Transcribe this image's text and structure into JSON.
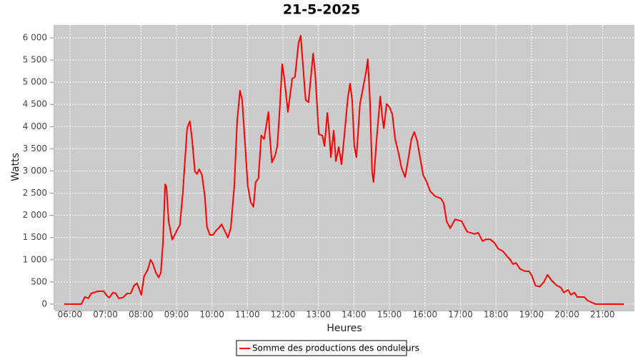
{
  "chart_data": {
    "type": "line",
    "title": "21-5-2025",
    "xlabel": "Heures",
    "ylabel": "Watts",
    "x": [
      5.84,
      6.32,
      6.42,
      6.52,
      6.6,
      6.72,
      6.79,
      6.95,
      7.05,
      7.11,
      7.21,
      7.29,
      7.37,
      7.49,
      7.61,
      7.71,
      7.81,
      7.89,
      7.95,
      8.01,
      8.09,
      8.19,
      8.27,
      8.33,
      8.42,
      8.5,
      8.56,
      8.62,
      8.68,
      8.72,
      8.78,
      8.88,
      8.94,
      9.02,
      9.1,
      9.18,
      9.3,
      9.38,
      9.44,
      9.52,
      9.58,
      9.64,
      9.72,
      9.8,
      9.86,
      9.94,
      10.03,
      10.13,
      10.19,
      10.27,
      10.35,
      10.45,
      10.53,
      10.63,
      10.71,
      10.79,
      10.85,
      10.93,
      11.01,
      11.09,
      11.17,
      11.23,
      11.31,
      11.39,
      11.47,
      11.59,
      11.63,
      11.69,
      11.78,
      11.84,
      11.9,
      11.98,
      12.04,
      12.14,
      12.26,
      12.34,
      12.44,
      12.5,
      12.56,
      12.64,
      12.72,
      12.85,
      12.91,
      13.01,
      13.11,
      13.17,
      13.25,
      13.31,
      13.35,
      13.43,
      13.49,
      13.57,
      13.65,
      13.73,
      13.83,
      13.89,
      13.95,
      14.01,
      14.07,
      14.17,
      14.25,
      14.35,
      14.39,
      14.45,
      14.51,
      14.55,
      14.64,
      14.74,
      14.8,
      14.84,
      14.92,
      15.0,
      15.08,
      15.16,
      15.26,
      15.34,
      15.44,
      15.54,
      15.62,
      15.7,
      15.78,
      15.86,
      15.95,
      16.05,
      16.15,
      16.29,
      16.45,
      16.53,
      16.61,
      16.71,
      16.85,
      17.03,
      17.19,
      17.4,
      17.5,
      17.62,
      17.72,
      17.84,
      17.96,
      18.06,
      18.2,
      18.3,
      18.4,
      18.48,
      18.56,
      18.68,
      18.82,
      18.93,
      19.01,
      19.11,
      19.23,
      19.35,
      19.45,
      19.57,
      19.71,
      19.83,
      19.91,
      20.03,
      20.11,
      20.21,
      20.29,
      20.49,
      20.58,
      20.72,
      20.81,
      21.6
    ],
    "series": [
      {
        "name": "Somme des productions des onduleurs",
        "color": "#ff0000",
        "values": [
          0,
          0,
          160,
          130,
          240,
          270,
          290,
          290,
          180,
          145,
          260,
          240,
          130,
          145,
          240,
          240,
          420,
          470,
          340,
          210,
          630,
          770,
          1000,
          920,
          710,
          600,
          710,
          1380,
          2700,
          2640,
          1870,
          1450,
          1540,
          1670,
          1790,
          2510,
          3960,
          4120,
          3720,
          2990,
          2930,
          3040,
          2910,
          2430,
          1740,
          1560,
          1560,
          1670,
          1710,
          1800,
          1670,
          1500,
          1710,
          2670,
          4120,
          4810,
          4600,
          3640,
          2670,
          2300,
          2190,
          2750,
          2830,
          3800,
          3720,
          4330,
          3800,
          3190,
          3350,
          3560,
          4280,
          5410,
          5080,
          4330,
          5080,
          5120,
          5890,
          6050,
          5410,
          4600,
          4550,
          5650,
          5170,
          3830,
          3800,
          3560,
          4310,
          3800,
          3310,
          3910,
          3220,
          3540,
          3150,
          3800,
          4670,
          4970,
          4600,
          3560,
          3310,
          4520,
          4840,
          5280,
          5520,
          4600,
          2990,
          2750,
          3720,
          4680,
          4200,
          3960,
          4510,
          4440,
          4280,
          3720,
          3390,
          3070,
          2860,
          3310,
          3720,
          3880,
          3680,
          3310,
          2910,
          2750,
          2540,
          2430,
          2380,
          2270,
          1870,
          1710,
          1910,
          1870,
          1630,
          1580,
          1610,
          1420,
          1460,
          1460,
          1380,
          1250,
          1190,
          1090,
          1000,
          900,
          930,
          790,
          740,
          740,
          640,
          420,
          390,
          500,
          660,
          530,
          420,
          370,
          260,
          320,
          210,
          260,
          160,
          160,
          80,
          30,
          0,
          0
        ]
      }
    ],
    "xlim": [
      5.58,
      21.9
    ],
    "xticks": [
      {
        "value": 6,
        "label": "06:00"
      },
      {
        "value": 7,
        "label": "07:00"
      },
      {
        "value": 8,
        "label": "08:00"
      },
      {
        "value": 9,
        "label": "09:00"
      },
      {
        "value": 10,
        "label": "10:00"
      },
      {
        "value": 11,
        "label": "11:00"
      },
      {
        "value": 12,
        "label": "12:00"
      },
      {
        "value": 13,
        "label": "13:00"
      },
      {
        "value": 14,
        "label": "14:00"
      },
      {
        "value": 15,
        "label": "15:00"
      },
      {
        "value": 16,
        "label": "16:00"
      },
      {
        "value": 17,
        "label": "17:00"
      },
      {
        "value": 18,
        "label": "18:00"
      },
      {
        "value": 19,
        "label": "19:00"
      },
      {
        "value": 20,
        "label": "20:00"
      },
      {
        "value": 21,
        "label": "21:00"
      }
    ],
    "ylim": [
      -130,
      6290
    ],
    "yticks": [
      0,
      500,
      {
        "value": 1000,
        "label": "1 000"
      },
      {
        "value": 1500,
        "label": "1 500"
      },
      {
        "value": 2000,
        "label": "2 000"
      },
      {
        "value": 2500,
        "label": "2 500"
      },
      {
        "value": 3000,
        "label": "3 000"
      },
      {
        "value": 3500,
        "label": "3 500"
      },
      {
        "value": 4000,
        "label": "4 000"
      },
      {
        "value": 4500,
        "label": "4 500"
      },
      {
        "value": 5000,
        "label": "5 000"
      },
      {
        "value": 5500,
        "label": "5 500"
      },
      {
        "value": 6000,
        "label": "6 000"
      }
    ],
    "grid": true,
    "legend": "bottom"
  }
}
